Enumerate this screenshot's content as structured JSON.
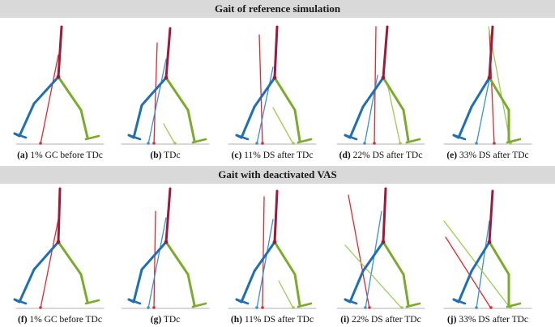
{
  "sections": [
    {
      "title": "Gait of reference simulation",
      "panels": [
        {
          "letter": "(a)",
          "text": "1% GC before TDc"
        },
        {
          "letter": "(b)",
          "text": "TDc"
        },
        {
          "letter": "(c)",
          "text": "11% DS after TDc"
        },
        {
          "letter": "(d)",
          "text": "22% DS after TDc"
        },
        {
          "letter": "(e)",
          "text": "33% DS after TDc"
        }
      ]
    },
    {
      "title": "Gait with deactivated VAS",
      "panels": [
        {
          "letter": "(f)",
          "text": "1% GC before TDc"
        },
        {
          "letter": "(g)",
          "text": "TDc"
        },
        {
          "letter": "(h)",
          "text": "11% DS after TDc"
        },
        {
          "letter": "(i)",
          "text": "22% DS after TDc"
        },
        {
          "letter": "(j)",
          "text": "33% DS after TDc"
        }
      ]
    }
  ],
  "colors": {
    "trunk": "#9b1b3a",
    "left_leg": "#1f6fb4",
    "right_leg": "#7aab2a",
    "grf_left": "#3a8fd4",
    "grf_right": "#9ccc50",
    "grf_red": "#e0282d",
    "ground": "#b0b0b0",
    "header_bg": "#d9d9d9"
  }
}
